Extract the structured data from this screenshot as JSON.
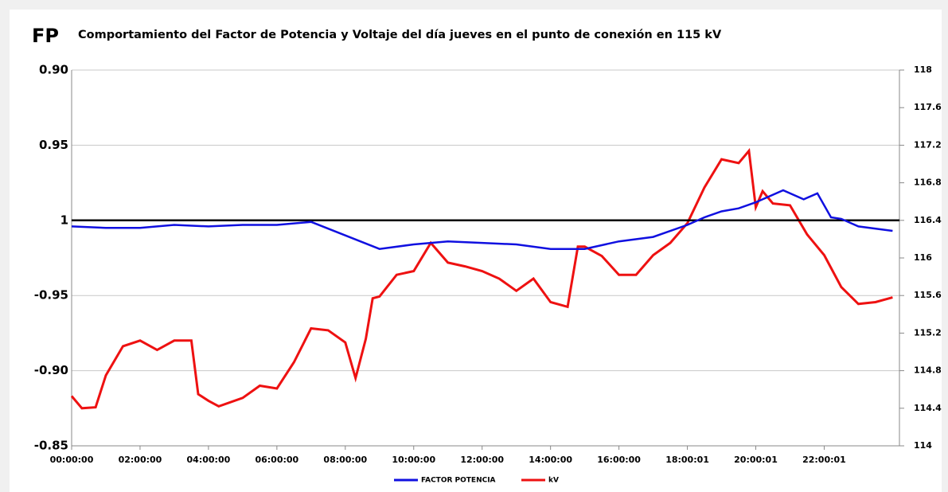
{
  "chart_data": {
    "type": "line",
    "title": "Comportamiento del Factor de Potencia y Voltaje del día jueves  en el punto de conexión en 115 kV",
    "ylabel": "FP",
    "xlim": [
      0,
      24.2
    ],
    "xticks": [
      {
        "value": 0,
        "label": "00:00:00"
      },
      {
        "value": 2,
        "label": "02:00:00"
      },
      {
        "value": 4,
        "label": "04:00:00"
      },
      {
        "value": 6,
        "label": "06:00:00"
      },
      {
        "value": 8,
        "label": "08:00:00"
      },
      {
        "value": 10,
        "label": "10:00:00"
      },
      {
        "value": 12,
        "label": "12:00:00"
      },
      {
        "value": 14,
        "label": "14:00:00"
      },
      {
        "value": 16,
        "label": "16:00:00"
      },
      {
        "value": 18.0003,
        "label": "18:00:01"
      },
      {
        "value": 20.0003,
        "label": "20:00:01"
      },
      {
        "value": 22.0003,
        "label": "22:00:01"
      }
    ],
    "ylim": [
      0.85,
      1.1
    ],
    "yticks": [
      {
        "value": 0.85,
        "label": "-0.85"
      },
      {
        "value": 0.9,
        "label": "-0.90"
      },
      {
        "value": 0.95,
        "label": "-0.95"
      },
      1,
      {
        "value": 1.05,
        "label": "0.95"
      },
      {
        "value": 1.1,
        "label": "0.90"
      }
    ],
    "y2lim": [
      114,
      118
    ],
    "y2ticks": [
      114,
      114.4,
      114.8,
      115.2,
      115.6,
      116,
      116.4,
      116.8,
      117.2,
      117.6,
      118
    ],
    "grid": true,
    "reference_line": {
      "value": 1,
      "color": "#000000"
    },
    "legend": "bottom",
    "series": [
      {
        "name": "FACTOR POTENCIA",
        "color": "#1010e0",
        "axis": "y",
        "x": [
          0,
          1,
          2,
          3,
          4,
          5,
          6,
          7,
          8,
          9,
          10,
          11,
          12,
          13,
          14,
          15,
          16,
          17,
          18,
          18.5,
          19,
          19.5,
          20,
          20.8,
          21.4,
          21.8,
          22.2,
          22.5,
          23,
          24
        ],
        "values": [
          0.996,
          0.995,
          0.995,
          0.997,
          0.996,
          0.997,
          0.997,
          0.999,
          0.99,
          0.981,
          0.984,
          0.986,
          0.985,
          0.984,
          0.981,
          0.981,
          0.986,
          0.989,
          0.997,
          1.002,
          1.006,
          1.008,
          1.012,
          1.02,
          1.014,
          1.018,
          1.002,
          1.001,
          0.996,
          0.993
        ]
      },
      {
        "name": "kV",
        "color": "#ee1111",
        "axis": "y2",
        "x": [
          0,
          0.3,
          0.7,
          1,
          1.5,
          2,
          2.5,
          3,
          3.5,
          3.7,
          4,
          4.3,
          5,
          5.5,
          6,
          6.5,
          7,
          7.5,
          8,
          8.3,
          8.6,
          8.8,
          9,
          9.5,
          10,
          10.5,
          11,
          11.5,
          12,
          12.5,
          13,
          13.5,
          14,
          14.5,
          14.8,
          15,
          15.5,
          16,
          16.5,
          17,
          17.5,
          18,
          18.5,
          19,
          19.5,
          19.8,
          20,
          20.2,
          20.5,
          21,
          21.5,
          22,
          22.5,
          23,
          23.5,
          24
        ],
        "values": [
          114.53,
          114.4,
          114.41,
          114.75,
          115.06,
          115.12,
          115.02,
          115.12,
          115.12,
          114.55,
          114.48,
          114.42,
          114.51,
          114.64,
          114.61,
          114.89,
          115.25,
          115.23,
          115.1,
          114.72,
          115.14,
          115.57,
          115.59,
          115.82,
          115.86,
          116.16,
          115.95,
          115.91,
          115.86,
          115.78,
          115.65,
          115.78,
          115.53,
          115.48,
          116.12,
          116.12,
          116.02,
          115.82,
          115.82,
          116.03,
          116.16,
          116.37,
          116.75,
          117.05,
          117.01,
          117.14,
          116.54,
          116.71,
          116.58,
          116.56,
          116.25,
          116.03,
          115.69,
          115.51,
          115.53,
          115.58
        ]
      }
    ]
  }
}
